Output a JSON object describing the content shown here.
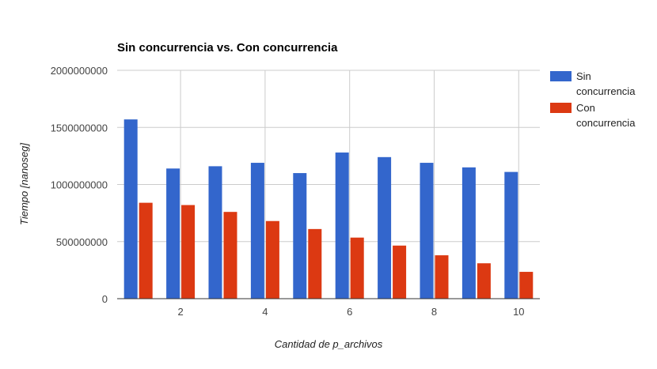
{
  "chart_data": {
    "type": "bar",
    "title": "Sin concurrencia vs. Con concurrencia",
    "xlabel": "Cantidad de p_archivos",
    "ylabel": "Tiempo [nanoseg]",
    "x": [
      1,
      2,
      3,
      4,
      5,
      6,
      7,
      8,
      9,
      10
    ],
    "x_tick_labels": [
      "2",
      "4",
      "6",
      "8",
      "10"
    ],
    "x_tick_values": [
      2,
      4,
      6,
      8,
      10
    ],
    "xlim": [
      0.5,
      10.5
    ],
    "ylim": [
      0,
      2000000000
    ],
    "y_ticks": [
      0,
      500000000,
      1000000000,
      1500000000,
      2000000000
    ],
    "y_tick_labels": [
      "0",
      "500000000",
      "1000000000",
      "1500000000",
      "2000000000"
    ],
    "grid": true,
    "legend_position": "right",
    "series": [
      {
        "name": "Sin concurrencia",
        "name_lines": [
          "Sin",
          "concurrencia"
        ],
        "color": "#3366cc",
        "values": [
          1570000000,
          1140000000,
          1160000000,
          1190000000,
          1100000000,
          1280000000,
          1240000000,
          1190000000,
          1150000000,
          1110000000
        ]
      },
      {
        "name": "Con concurrencia",
        "name_lines": [
          "Con",
          "concurrencia"
        ],
        "color": "#dc3912",
        "values": [
          840000000,
          820000000,
          760000000,
          680000000,
          610000000,
          535000000,
          465000000,
          380000000,
          310000000,
          235000000
        ]
      }
    ]
  }
}
